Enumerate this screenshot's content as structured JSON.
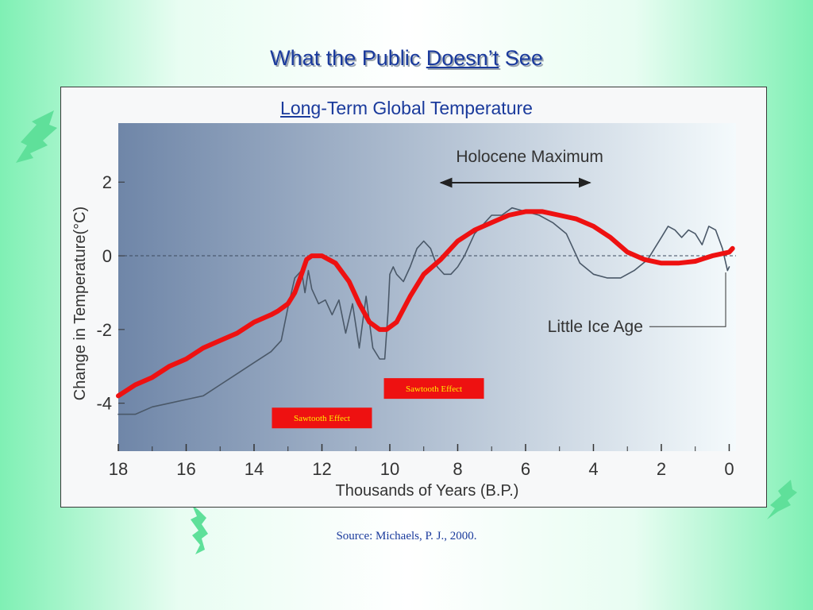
{
  "slide": {
    "title_part1": "What the Public ",
    "title_underlined": "Doesn’t",
    "title_part2": " See"
  },
  "chart_title": {
    "underlined": "Long",
    "rest": "-Term Global Temperature"
  },
  "source": "Source: Michaels, P. J., 2000.",
  "colors": {
    "title": "#1a3a9c",
    "red_curve": "#ee1111",
    "original_curve": "#4a5868",
    "plot_left": "#6f86a8",
    "plot_right": "#f4fafc",
    "callout_box": "#ee1111",
    "callout_text": "#ffee00",
    "background_edge": "#7ff0b4"
  },
  "chart_data": {
    "type": "line",
    "title": "",
    "xlabel": "Thousands of Years (B.P.)",
    "ylabel": "Change in Temperature(°C)",
    "xlim": [
      18,
      -0.2
    ],
    "ylim": [
      -5.3,
      3.6
    ],
    "x_ticks": [
      18,
      16,
      14,
      12,
      10,
      8,
      6,
      4,
      2,
      0
    ],
    "y_ticks": [
      2,
      0,
      -2,
      -4
    ],
    "grid": false,
    "zero_reference_line": "dashed",
    "series": [
      {
        "style": "thin-grey",
        "x": [
          18,
          17.5,
          17,
          16.5,
          16,
          15.5,
          15,
          14.5,
          14,
          13.5,
          13.2,
          13,
          12.8,
          12.6,
          12.5,
          12.4,
          12.3,
          12.1,
          11.9,
          11.7,
          11.5,
          11.3,
          11.1,
          10.9,
          10.7,
          10.5,
          10.3,
          10.15,
          10.05,
          10,
          9.9,
          9.8,
          9.6,
          9.4,
          9.2,
          9.0,
          8.8,
          8.6,
          8.4,
          8.2,
          8.0,
          7.8,
          7.5,
          7.2,
          7.0,
          6.7,
          6.4,
          6.0,
          5.6,
          5.2,
          4.8,
          4.4,
          4.0,
          3.6,
          3.2,
          2.8,
          2.4,
          2.2,
          2.0,
          1.8,
          1.6,
          1.4,
          1.2,
          1.0,
          0.8,
          0.6,
          0.4,
          0.2,
          0.05,
          0
        ],
        "values": [
          -4.3,
          -4.3,
          -4.1,
          -4.0,
          -3.9,
          -3.8,
          -3.5,
          -3.2,
          -2.9,
          -2.6,
          -2.3,
          -1.4,
          -0.6,
          -0.4,
          -1.0,
          -0.4,
          -0.9,
          -1.3,
          -1.2,
          -1.6,
          -1.2,
          -2.1,
          -1.3,
          -2.5,
          -1.1,
          -2.5,
          -2.8,
          -2.8,
          -1.5,
          -0.5,
          -0.3,
          -0.5,
          -0.7,
          -0.3,
          0.2,
          0.4,
          0.2,
          -0.3,
          -0.5,
          -0.5,
          -0.3,
          0.0,
          0.6,
          0.9,
          1.1,
          1.1,
          1.3,
          1.2,
          1.1,
          0.9,
          0.6,
          -0.2,
          -0.5,
          -0.6,
          -0.6,
          -0.4,
          -0.1,
          0.2,
          0.5,
          0.8,
          0.7,
          0.5,
          0.7,
          0.6,
          0.3,
          0.8,
          0.7,
          0.2,
          -0.4,
          -0.3
        ]
      },
      {
        "style": "thick-red",
        "x": [
          18,
          17.5,
          17,
          16.5,
          16,
          15.5,
          15,
          14.5,
          14,
          13.5,
          13.3,
          13.0,
          12.8,
          12.6,
          12.45,
          12.3,
          12.0,
          11.6,
          11.2,
          10.9,
          10.6,
          10.3,
          10.1,
          9.8,
          9.4,
          9.0,
          8.5,
          8.0,
          7.5,
          7.0,
          6.5,
          6.0,
          5.5,
          5.0,
          4.5,
          4.0,
          3.5,
          3.0,
          2.5,
          2.0,
          1.5,
          1.0,
          0.5,
          0,
          -0.1
        ],
        "values": [
          -3.8,
          -3.5,
          -3.3,
          -3.0,
          -2.8,
          -2.5,
          -2.3,
          -2.1,
          -1.8,
          -1.6,
          -1.5,
          -1.3,
          -1.0,
          -0.5,
          -0.1,
          0.0,
          0.0,
          -0.2,
          -0.7,
          -1.3,
          -1.8,
          -2.0,
          -2.0,
          -1.8,
          -1.1,
          -0.5,
          -0.1,
          0.4,
          0.7,
          0.9,
          1.1,
          1.2,
          1.2,
          1.1,
          1.0,
          0.8,
          0.5,
          0.1,
          -0.1,
          -0.2,
          -0.2,
          -0.15,
          0.0,
          0.1,
          0.2
        ]
      }
    ],
    "annotations": [
      {
        "text": "Holocene Maximum",
        "range": [
          8.5,
          4.1
        ],
        "y": 2.2,
        "arrow": "double-headed"
      },
      {
        "text": "Little Ice Age",
        "at": [
          0.2,
          -1.9
        ]
      },
      {
        "text": "Sawtooth Effect",
        "at": [
          12.0,
          -4.4
        ],
        "box": "red"
      },
      {
        "text": "Sawtooth Effect",
        "at": [
          8.7,
          -3.6
        ],
        "box": "red"
      }
    ]
  }
}
